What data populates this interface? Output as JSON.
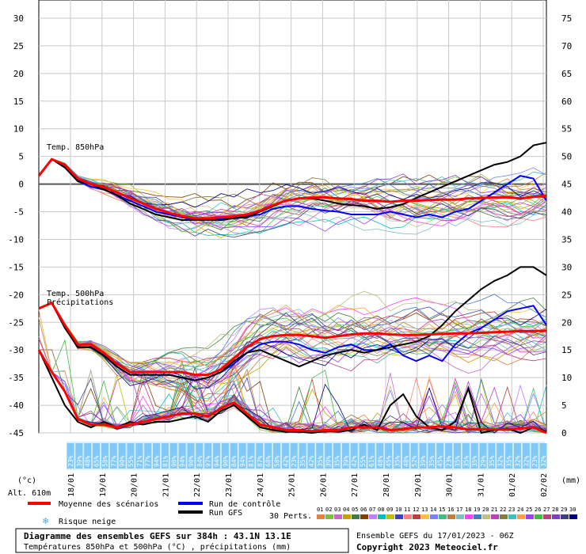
{
  "chart_data": {
    "type": "line",
    "title": "Diagramme des ensembles GEFS sur 384h : 43.1N 13.1E",
    "subtitle": "Températures 850hPa et 500hPa (°C) , précipitations (mm)",
    "run_info": "Ensemble GEFS du 17/01/2023 - 06Z",
    "copyright": "Copyright 2023 Meteociel.fr",
    "altitude": "Alt. 610m",
    "left_unit": "(°c)",
    "right_unit": "(mm)",
    "left_ticks": [
      30,
      25,
      20,
      15,
      10,
      5,
      0,
      -5,
      -10,
      -15,
      -20,
      -25,
      -30,
      -35,
      -40,
      -45
    ],
    "right_ticks": [
      75,
      70,
      65,
      60,
      55,
      50,
      45,
      40,
      35,
      30,
      25,
      20,
      15,
      10,
      5,
      0
    ],
    "ylim_temp": [
      -45,
      30
    ],
    "ylim_precip": [
      0,
      75
    ],
    "dates": [
      "18/01",
      "19/01",
      "20/01",
      "21/01",
      "22/01",
      "23/01",
      "24/01",
      "25/01",
      "26/01",
      "27/01",
      "28/01",
      "29/01",
      "30/01",
      "31/01",
      "01/02",
      "02/02"
    ],
    "annotations": {
      "t850_label": "Temp. 850hPa",
      "t500_label": "Temp. 500hPa",
      "precip_label": "Précipitations"
    },
    "snow_risk": [
      "23%",
      "39%",
      "48%",
      "65%",
      "58%",
      "77%",
      "90%",
      "55%",
      "71%",
      "77%",
      "94%",
      "81%",
      "90%",
      "94%",
      "90%",
      "84%",
      "97%",
      "94%",
      "90%",
      "84%",
      "94%",
      "81%",
      "87%",
      "68%",
      "58%",
      "42%",
      "23%",
      "35%",
      "42%",
      "35%",
      "39%",
      "35%",
      "39%",
      "42%",
      "55%",
      "61%",
      "48%",
      "45%",
      "35%",
      "48%",
      "52%",
      "39%",
      "35%",
      "45%",
      "23%",
      "35%",
      "35%",
      "35%",
      "29%",
      "35%",
      "32%",
      "35%",
      "32%",
      "32%",
      "23%",
      "32%"
    ],
    "mean_t850": [
      1.5,
      4.5,
      3.5,
      1,
      0,
      -0.5,
      -1.5,
      -2.5,
      -3.5,
      -4.5,
      -5.2,
      -5.8,
      -6.2,
      -6.2,
      -6,
      -5.8,
      -5.5,
      -4.8,
      -3.8,
      -3,
      -2.6,
      -2.4,
      -2.4,
      -2.6,
      -2.7,
      -3,
      -3,
      -3.2,
      -3,
      -3,
      -2.9,
      -2.8,
      -2.8,
      -2.6,
      -2.5,
      -2.4,
      -2.4,
      -2.6,
      -2.3,
      -2.1
    ],
    "control_t850": [
      1.5,
      4.5,
      3,
      0.5,
      -0.5,
      -1,
      -2,
      -3,
      -4,
      -5,
      -5.5,
      -6,
      -6.5,
      -6.5,
      -6.2,
      -6,
      -5.8,
      -5.5,
      -4.5,
      -4,
      -4,
      -4.5,
      -4.8,
      -5,
      -5.5,
      -5.5,
      -5.5,
      -5,
      -5.5,
      -6,
      -5.5,
      -6,
      -5,
      -4.5,
      -3,
      -1.5,
      0,
      1.5,
      1,
      -3
    ],
    "gfs_t850": [
      1.5,
      4.5,
      3,
      0.5,
      0,
      -1,
      -2,
      -3.5,
      -4.5,
      -5.5,
      -6,
      -6.5,
      -6.5,
      -6.5,
      -6.5,
      -6.2,
      -6,
      -5,
      -4,
      -3,
      -2.5,
      -2.6,
      -3,
      -3.5,
      -3.8,
      -4,
      -4.5,
      -4.2,
      -3.6,
      -2.5,
      -1.5,
      -0.5,
      0.5,
      1.5,
      2.5,
      3.5,
      4,
      5,
      7,
      7.5
    ],
    "mean_t500": [
      -22.5,
      -21.5,
      -25.5,
      -29,
      -29,
      -30.5,
      -32.5,
      -34,
      -34,
      -34,
      -34,
      -34,
      -34.5,
      -34.5,
      -33.5,
      -31.5,
      -29.5,
      -28,
      -27.5,
      -27.3,
      -27.3,
      -27.5,
      -27.8,
      -27.5,
      -27.2,
      -27,
      -27,
      -27.2,
      -27.3,
      -27.3,
      -27.2,
      -27.1,
      -27,
      -27,
      -26.9,
      -26.8,
      -26.7,
      -26.6,
      -26.6,
      -26.5
    ],
    "control_t500": [
      -22.5,
      -21.5,
      -26,
      -29.5,
      -29.5,
      -31,
      -33,
      -34.5,
      -34.5,
      -34.5,
      -34.5,
      -35,
      -35.5,
      -35,
      -34,
      -32.5,
      -30.5,
      -29,
      -28.5,
      -28.5,
      -29,
      -30,
      -30.5,
      -29.5,
      -29,
      -30,
      -30,
      -29,
      -31,
      -32,
      -31,
      -32,
      -29,
      -27,
      -26,
      -24.5,
      -23,
      -22.5,
      -22,
      -25.5
    ],
    "gfs_t500": [
      -22.5,
      -21.5,
      -26,
      -29.5,
      -29.5,
      -31,
      -33,
      -34.5,
      -34.5,
      -34.5,
      -34.5,
      -35,
      -35.5,
      -35,
      -34,
      -32,
      -30.5,
      -30,
      -31,
      -32,
      -33,
      -32,
      -31,
      -30.5,
      -30,
      -30.5,
      -30,
      -29.5,
      -29,
      -28.5,
      -27.5,
      -25.5,
      -23,
      -21,
      -19,
      -17.5,
      -16.5,
      -15,
      -15,
      -16.5
    ],
    "mean_precip": [
      15,
      11,
      7.5,
      2.5,
      1.5,
      1.5,
      1,
      1.5,
      2,
      2.5,
      3,
      3.5,
      3.5,
      3,
      4.5,
      5.5,
      3.5,
      1.5,
      1,
      0.5,
      0.5,
      0.3,
      0.5,
      0.5,
      1,
      1,
      1,
      0.5,
      0.7,
      1,
      1,
      1.2,
      1,
      0.6,
      0.7,
      0.6,
      0.6,
      0.8,
      1,
      0
    ],
    "gfs_precip": [
      15,
      10,
      5,
      2,
      1,
      2,
      1,
      2,
      1.5,
      2,
      2,
      2.5,
      3,
      2,
      4,
      5,
      3,
      1,
      0.5,
      0.2,
      0.2,
      0,
      0.3,
      0.2,
      0.5,
      1.5,
      0.5,
      5,
      7,
      3,
      1,
      0.5,
      2,
      8,
      0,
      0.5,
      0.8,
      0,
      1,
      0.3
    ]
  },
  "legend": {
    "mean_label": "Moyenne des scénarios",
    "control_label": "Run de contrôle",
    "gfs_label": "Run GFS",
    "snow_label": "Risque neige",
    "perts_label": "30 Perts.",
    "mean_color": "#ff0000",
    "control_color": "#0000ff",
    "gfs_color": "#000000",
    "pert_numbers": [
      "01",
      "02",
      "03",
      "04",
      "05",
      "06",
      "07",
      "08",
      "09",
      "10",
      "11",
      "12",
      "13",
      "14",
      "15",
      "16",
      "17",
      "18",
      "19",
      "20",
      "21",
      "22",
      "23",
      "24",
      "25",
      "26",
      "27",
      "28",
      "29",
      "30"
    ],
    "pert_colors": [
      "#e87f3a",
      "#7fbf3f",
      "#cc66cc",
      "#c8a000",
      "#3f7f3f",
      "#7f3f00",
      "#bf7fff",
      "#00bfbf",
      "#bfbf00",
      "#3f3fbf",
      "#ff7f7f",
      "#bf3f3f",
      "#ffbf3f",
      "#7f7fff",
      "#3fbf7f",
      "#bf7f3f",
      "#7fbfbf",
      "#ff3fff",
      "#3f7fbf",
      "#bfbf7f",
      "#bf3fbf",
      "#7f7f3f",
      "#3fbfbf",
      "#ff9f3f",
      "#9f3fff",
      "#3fbf3f",
      "#bf3f7f",
      "#7f3fbf",
      "#3f3f7f",
      "#00007f"
    ]
  }
}
